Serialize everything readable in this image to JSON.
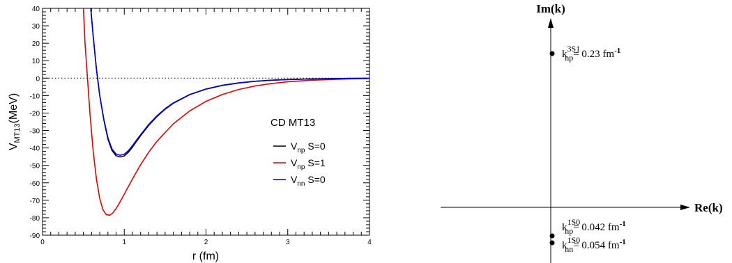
{
  "chart_data": [
    {
      "type": "line",
      "title": "",
      "annotation": "CD MT13",
      "xlabel": "r (fm)",
      "ylabel_main": "V",
      "ylabel_sub": "MT13",
      "ylabel_unit": "(MeV)",
      "xlim": [
        0,
        4
      ],
      "ylim": [
        -90,
        40
      ],
      "x_ticks": [
        "0",
        "1",
        "2",
        "3",
        "4"
      ],
      "y_ticks": [
        "40",
        "30",
        "20",
        "10",
        "0",
        "-10",
        "-20",
        "-30",
        "-40",
        "-50",
        "-60",
        "-70",
        "-80",
        "-90"
      ],
      "reference_line": {
        "y": 0,
        "style": "dotted"
      },
      "legend_placement": "right",
      "series": [
        {
          "name": "V_np S=0",
          "legend_main": "V",
          "legend_sub": "np",
          "legend_tail": " S=0",
          "color": "#000000",
          "x": [
            0.59,
            0.62,
            0.66,
            0.7,
            0.75,
            0.8,
            0.85,
            0.9,
            0.95,
            1.0,
            1.05,
            1.1,
            1.15,
            1.2,
            1.3,
            1.4,
            1.5,
            1.6,
            1.8,
            2.0,
            2.2,
            2.4,
            2.6,
            2.8,
            3.0,
            3.25,
            3.5,
            3.75,
            4.0
          ],
          "y": [
            40,
            24,
            5,
            -10,
            -24,
            -35,
            -41.5,
            -44.5,
            -45.2,
            -44.6,
            -42.5,
            -39.5,
            -36.2,
            -33,
            -27,
            -22,
            -17.8,
            -14.4,
            -9.5,
            -6.3,
            -4.2,
            -2.8,
            -1.8,
            -1.2,
            -0.8,
            -0.5,
            -0.3,
            -0.15,
            -0.08
          ]
        },
        {
          "name": "V_np S=1",
          "legend_main": "V",
          "legend_sub": "np",
          "legend_tail": " S=1",
          "color": "#e00000",
          "x": [
            0.5,
            0.52,
            0.55,
            0.58,
            0.62,
            0.66,
            0.7,
            0.74,
            0.78,
            0.82,
            0.86,
            0.9,
            0.95,
            1.0,
            1.1,
            1.2,
            1.3,
            1.4,
            1.6,
            1.8,
            2.0,
            2.2,
            2.4,
            2.6,
            2.8,
            3.0,
            3.25,
            3.5,
            3.75,
            4.0
          ],
          "y": [
            40,
            20,
            0,
            -20,
            -42,
            -58,
            -69,
            -75.5,
            -78.2,
            -78.6,
            -77.3,
            -74.8,
            -70.8,
            -66.5,
            -57.8,
            -49.6,
            -42.4,
            -36.2,
            -26.2,
            -18.8,
            -13.3,
            -9.4,
            -6.5,
            -4.5,
            -3.1,
            -2.1,
            -1.3,
            -0.8,
            -0.45,
            -0.25
          ]
        },
        {
          "name": "V_nn S=0",
          "legend_main": "V",
          "legend_sub": "nn",
          "legend_tail": " S=0",
          "color": "#0000cc",
          "x": [
            0.59,
            0.62,
            0.66,
            0.7,
            0.75,
            0.8,
            0.85,
            0.9,
            0.95,
            1.0,
            1.05,
            1.1,
            1.15,
            1.2,
            1.3,
            1.4,
            1.5,
            1.6,
            1.8,
            2.0,
            2.2,
            2.4,
            2.6,
            2.8,
            3.0,
            3.25,
            3.5,
            3.75,
            4.0
          ],
          "y": [
            40,
            24,
            5,
            -10,
            -23.5,
            -34.2,
            -40.6,
            -43.5,
            -44.2,
            -43.6,
            -41.6,
            -38.7,
            -35.5,
            -32.4,
            -26.5,
            -21.6,
            -17.5,
            -14.2,
            -9.4,
            -6.2,
            -4.1,
            -2.7,
            -1.8,
            -1.2,
            -0.8,
            -0.5,
            -0.3,
            -0.15,
            -0.08
          ]
        }
      ]
    },
    {
      "type": "scatter",
      "title": "",
      "xlabel": "Re(k)",
      "ylabel": "Im(k)",
      "points": [
        {
          "name": "k_np^3S1",
          "value": 0.23,
          "label_base": "k",
          "label_sub": "np",
          "label_sup": "3S1",
          "label_text": "= 0.23 fm",
          "label_exp": "-1"
        },
        {
          "name": "k_np^1S0",
          "value": 0.042,
          "label_base": "k",
          "label_sub": "np",
          "label_sup": "1S0",
          "label_text": "= 0.042 fm",
          "label_exp": "-1"
        },
        {
          "name": "k_nn^1S0",
          "value": 0.054,
          "label_base": "k",
          "label_sub": "nn",
          "label_sup": "1S0",
          "label_text": "= 0.054 fm",
          "label_exp": "-1"
        }
      ]
    }
  ]
}
